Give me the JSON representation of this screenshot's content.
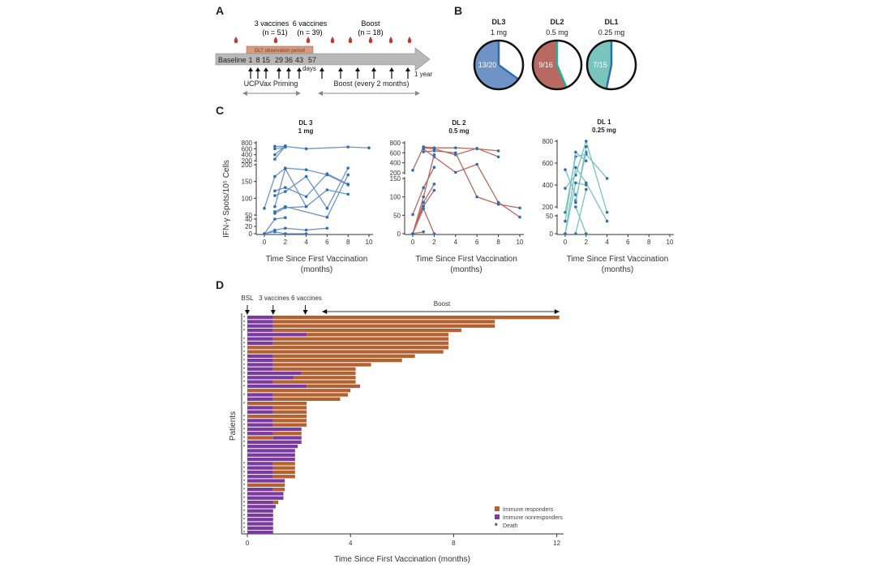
{
  "panels": {
    "A": "A",
    "B": "B",
    "C": "C",
    "D": "D"
  },
  "panelA": {
    "groups": [
      {
        "label": "3  vaccines",
        "n": "(n = 51)"
      },
      {
        "label": "6 vaccines",
        "n": "(n = 39)"
      },
      {
        "label": "Boost",
        "n": "(n = 18)"
      }
    ],
    "dlt_label": "DLT observation period",
    "timeline_labels": [
      "Baseline",
      "1",
      "8",
      "15",
      "29",
      "36",
      "43",
      "57"
    ],
    "days_label": "days",
    "year_label": "1 year",
    "priming_label": "UCPVax Priming",
    "boost_label": "Boost (every 2 months)",
    "blood_drop_color": "#c0392b",
    "arrow_fill": "#b8b8b8",
    "dlt_fill": "#d99a80"
  },
  "chart_data": [
    {
      "type": "pie",
      "panel": "B",
      "items": [
        {
          "title": "DL3",
          "dose": "1 mg",
          "label": "13/20",
          "responders": 13,
          "total": 20,
          "color": "#6f93c6",
          "edge": "#2f6db0"
        },
        {
          "title": "DL2",
          "dose": "0.5 mg",
          "label": "9/16",
          "responders": 9,
          "total": 16,
          "color": "#b86a62",
          "edge": "#1fb0a0"
        },
        {
          "title": "DL1",
          "dose": "0.25 mg",
          "label": "7/15",
          "responders": 7,
          "total": 15,
          "color": "#79c4bd",
          "edge": "#2f6db0"
        }
      ]
    },
    {
      "type": "line",
      "panel": "C",
      "ylabel": "IFN-γ Spots/10⁵ Cells",
      "xlabel": "Time Since First Vaccination",
      "xlabel2": "(months)",
      "xticks": [
        0,
        2,
        4,
        6,
        8,
        10
      ],
      "subplots": [
        {
          "title": "DL 3",
          "subtitle": "1 mg",
          "line_color": "#6f93c6",
          "yticks_top": [
            200,
            400,
            600,
            800
          ],
          "yticks_mid": [
            50,
            100,
            150,
            200
          ],
          "yticks_low": [
            0,
            20,
            40
          ],
          "series": [
            [
              [
                1,
                680
              ],
              [
                2,
                680
              ],
              [
                4,
                600
              ],
              [
                8,
                660
              ],
              [
                10,
                630
              ]
            ],
            [
              [
                1,
                600
              ],
              [
                2,
                650
              ]
            ],
            [
              [
                1,
                400
              ],
              [
                2,
                700
              ]
            ],
            [
              [
                1,
                250
              ],
              [
                2,
                690
              ]
            ],
            [
              [
                0,
                70
              ],
              [
                1,
                165
              ],
              [
                2,
                190
              ],
              [
                4,
                185
              ],
              [
                6,
                170
              ],
              [
                8,
                140
              ]
            ],
            [
              [
                1,
                122
              ],
              [
                2,
                132
              ],
              [
                4,
                105
              ],
              [
                6,
                173
              ],
              [
                8,
                142
              ]
            ],
            [
              [
                1,
                108
              ],
              [
                2,
                120
              ],
              [
                4,
                165
              ],
              [
                6,
                70
              ],
              [
                8,
                190
              ]
            ],
            [
              [
                1,
                75
              ],
              [
                2,
                188
              ],
              [
                4,
                75
              ],
              [
                6,
                125
              ],
              [
                8,
                112
              ]
            ],
            [
              [
                1,
                60
              ],
              [
                2,
                75
              ],
              [
                6,
                45
              ],
              [
                8,
                170
              ]
            ],
            [
              [
                1,
                55
              ],
              [
                2,
                72
              ],
              [
                4,
                75
              ]
            ],
            [
              [
                0,
                0
              ],
              [
                1,
                40
              ],
              [
                2,
                44
              ]
            ],
            [
              [
                0,
                0
              ],
              [
                1,
                10
              ],
              [
                2,
                15
              ],
              [
                4,
                10
              ],
              [
                6,
                15
              ]
            ],
            [
              [
                0,
                0
              ],
              [
                1,
                5
              ],
              [
                2,
                0
              ],
              [
                4,
                0
              ]
            ]
          ]
        },
        {
          "title": "DL 2",
          "subtitle": "0.5 mg",
          "line_color": "#b86a62",
          "yticks_top": [
            200,
            400,
            600,
            800
          ],
          "yticks_mid": [
            0,
            50,
            100,
            150
          ],
          "yticks_low": [],
          "series": [
            [
              [
                0,
                250
              ],
              [
                1,
                720
              ],
              [
                2,
                700
              ],
              [
                4,
                700
              ],
              [
                6,
                680
              ],
              [
                8,
                640
              ]
            ],
            [
              [
                1,
                700
              ],
              [
                2,
                680
              ],
              [
                4,
                560
              ],
              [
                6,
                690
              ],
              [
                8,
                520
              ]
            ],
            [
              [
                1,
                620
              ],
              [
                2,
                640
              ],
              [
                4,
                600
              ],
              [
                6,
                100
              ],
              [
                8,
                80
              ],
              [
                10,
                70
              ]
            ],
            [
              [
                1,
                680
              ],
              [
                2,
                520
              ],
              [
                4,
                210
              ],
              [
                6,
                370
              ],
              [
                8,
                85
              ],
              [
                10,
                45
              ]
            ],
            [
              [
                0,
                52
              ],
              [
                1,
                125
              ],
              [
                2,
                310
              ]
            ],
            [
              [
                0,
                0
              ],
              [
                1,
                100
              ],
              [
                2,
                560
              ]
            ],
            [
              [
                0,
                0
              ],
              [
                1,
                85
              ],
              [
                2,
                135
              ]
            ],
            [
              [
                0,
                0
              ],
              [
                1,
                75
              ],
              [
                2,
                118
              ]
            ],
            [
              [
                0,
                0
              ],
              [
                1,
                68
              ],
              [
                2,
                0
              ]
            ],
            [
              [
                0,
                0
              ],
              [
                1,
                5
              ]
            ]
          ]
        },
        {
          "title": "DL 1",
          "subtitle": "0.25 mg",
          "line_color": "#79c4bd",
          "yticks_top": [
            200,
            400,
            600,
            800
          ],
          "yticks_mid": [
            0,
            50
          ],
          "yticks_low": [],
          "series": [
            [
              [
                0,
                540
              ],
              [
                1,
                310
              ]
            ],
            [
              [
                0,
                370
              ],
              [
                1,
                490
              ],
              [
                2,
                800
              ],
              [
                4,
                150
              ]
            ],
            [
              [
                0,
                150
              ],
              [
                1,
                660
              ],
              [
                2,
                680
              ],
              [
                4,
                460
              ]
            ],
            [
              [
                0,
                35
              ],
              [
                1,
                700
              ],
              [
                2,
                620
              ]
            ],
            [
              [
                0,
                0
              ],
              [
                1,
                560
              ],
              [
                2,
                420
              ],
              [
                4,
                70
              ]
            ],
            [
              [
                0,
                0
              ],
              [
                1,
                420
              ],
              [
                2,
                400
              ]
            ],
            [
              [
                1,
                260
              ],
              [
                2,
                700
              ]
            ],
            [
              [
                1,
                240
              ],
              [
                2,
                750
              ]
            ],
            [
              [
                1,
                200
              ],
              [
                2,
                0
              ]
            ],
            [
              [
                1,
                0
              ],
              [
                2,
                360
              ]
            ]
          ]
        }
      ]
    },
    {
      "type": "bar",
      "panel": "D",
      "orientation": "horizontal-stacked",
      "xlabel": "Time Since First Vaccination (months)",
      "ylabel": "Patients",
      "xticks": [
        0,
        4,
        8,
        12
      ],
      "xlim": [
        0,
        12.3
      ],
      "markers": [
        {
          "label": "BSL",
          "x": 0
        },
        {
          "label": "3 vaccines",
          "x": 1
        },
        {
          "label": "6 vaccines",
          "x": 2.25
        }
      ],
      "boost_label": "Boost",
      "boost_range": [
        2.9,
        12.1
      ],
      "legend": [
        {
          "label": "Immune responders",
          "color": "#b5602f"
        },
        {
          "label": "Immune nonresponders",
          "color": "#7b3aa0"
        },
        {
          "label": "Death",
          "symbol": "*"
        }
      ],
      "legend_position": "bottom-right",
      "rows": [
        {
          "purple": 1.0,
          "total": 12.1,
          "death": true
        },
        {
          "purple": 1.0,
          "total": 9.6,
          "death": true
        },
        {
          "purple": 1.0,
          "total": 9.6,
          "death": true
        },
        {
          "purple": 1.0,
          "total": 8.3,
          "death": true
        },
        {
          "purple": 2.3,
          "total": 7.8,
          "death": false
        },
        {
          "purple": 1.0,
          "total": 7.8,
          "death": true
        },
        {
          "purple": 1.0,
          "total": 7.8,
          "death": true
        },
        {
          "purple": 0.0,
          "total": 7.8,
          "death": true
        },
        {
          "purple": 0.0,
          "total": 7.6,
          "death": true
        },
        {
          "purple": 1.0,
          "total": 6.5,
          "death": true
        },
        {
          "purple": 1.0,
          "total": 6.0,
          "death": true
        },
        {
          "purple": 1.0,
          "total": 4.8,
          "death": true
        },
        {
          "purple": 1.0,
          "total": 4.2,
          "death": true
        },
        {
          "purple": 2.1,
          "total": 4.2,
          "death": true
        },
        {
          "purple": 1.8,
          "total": 4.2,
          "death": true
        },
        {
          "purple": 1.0,
          "total": 4.2,
          "death": true
        },
        {
          "purple": 2.3,
          "total": 4.3,
          "death": true,
          "purple_tip": true
        },
        {
          "purple": 0.0,
          "total": 4.0,
          "death": false
        },
        {
          "purple": 1.0,
          "total": 3.9,
          "death": true
        },
        {
          "purple": 1.0,
          "total": 3.6,
          "death": false
        },
        {
          "purple": 0.0,
          "total": 2.3,
          "death": true
        },
        {
          "purple": 1.0,
          "total": 2.3,
          "death": false
        },
        {
          "purple": 1.0,
          "total": 2.3,
          "death": false
        },
        {
          "purple": 0.0,
          "total": 2.3,
          "death": true
        },
        {
          "purple": 1.0,
          "total": 2.3,
          "death": true
        },
        {
          "purple": 1.0,
          "total": 2.3,
          "death": true
        },
        {
          "purple": 2.1,
          "total": 2.1,
          "death": true
        },
        {
          "purple": 1.0,
          "total": 2.1,
          "death": true
        },
        {
          "purple": 2.1,
          "total": 2.1,
          "death": true,
          "orange_first": 1.0
        },
        {
          "purple": 2.1,
          "total": 2.1,
          "death": true
        },
        {
          "purple": 1.95,
          "total": 1.95,
          "death": true
        },
        {
          "purple": 1.85,
          "total": 1.85,
          "death": false
        },
        {
          "purple": 1.85,
          "total": 1.85,
          "death": false
        },
        {
          "purple": 1.85,
          "total": 1.85,
          "death": false
        },
        {
          "purple": 1.0,
          "total": 1.85,
          "death": true
        },
        {
          "purple": 1.0,
          "total": 1.85,
          "death": true
        },
        {
          "purple": 1.0,
          "total": 1.85,
          "death": true
        },
        {
          "purple": 1.0,
          "total": 1.85,
          "death": true
        },
        {
          "purple": 1.45,
          "total": 1.45,
          "death": true
        },
        {
          "purple": 0.0,
          "total": 1.45,
          "death": true
        },
        {
          "purple": 1.0,
          "total": 1.45,
          "death": true
        },
        {
          "purple": 1.4,
          "total": 1.4,
          "death": true
        },
        {
          "purple": 1.4,
          "total": 1.4,
          "death": true
        },
        {
          "purple": 1.0,
          "total": 1.2,
          "death": true
        },
        {
          "purple": 1.1,
          "total": 1.1,
          "death": true
        },
        {
          "purple": 1.0,
          "total": 1.0,
          "death": true
        },
        {
          "purple": 1.0,
          "total": 1.0,
          "death": true
        },
        {
          "purple": 1.0,
          "total": 1.0,
          "death": true
        },
        {
          "purple": 1.0,
          "total": 1.0,
          "death": true
        },
        {
          "purple": 1.0,
          "total": 1.0,
          "death": true
        },
        {
          "purple": 1.0,
          "total": 1.0,
          "death": true
        }
      ]
    }
  ]
}
